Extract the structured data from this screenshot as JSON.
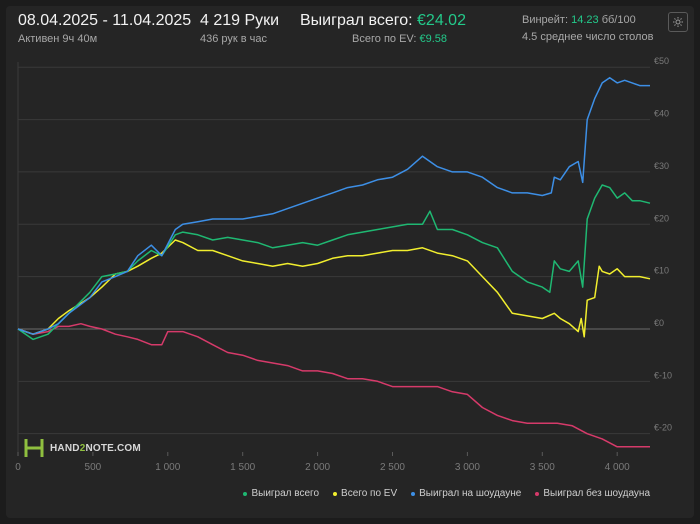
{
  "header": {
    "date_range": "08.04.2025 - 11.04.2025",
    "active": "Активен 9ч 40м",
    "hands": "4 219 Руки",
    "hands_rate": "436 рук в час",
    "won_label": "Выиграл всего:",
    "won_value": "€24.02",
    "ev_label": "Всего по EV:",
    "ev_value": "€9.58",
    "winrate_label": "Винрейт:",
    "winrate_value": "14.23",
    "winrate_unit": "бб/100",
    "tables": "4.5 среднее число столов"
  },
  "logo": {
    "text_left": "HAND",
    "text_mid": "2",
    "text_right": "NOTE.COM",
    "icon": "h2n-logo-icon"
  },
  "settings": {
    "icon": "gear-icon"
  },
  "colors": {
    "green": "#1fb872",
    "yellow": "#f1ee2e",
    "blue": "#3d8fe6",
    "pink": "#d63a6a",
    "accent": "#23c98a"
  },
  "chart_data": {
    "type": "line",
    "x_ticks": [
      0,
      500,
      1000,
      1500,
      2000,
      2500,
      3000,
      3500,
      4000
    ],
    "x_tick_labels": [
      "0",
      "500",
      "1 000",
      "1 500",
      "2 000",
      "2 500",
      "3 000",
      "3 500",
      "4 000"
    ],
    "y_ticks": [
      -20,
      -10,
      0,
      10,
      20,
      30,
      40,
      50
    ],
    "y_tick_labels": [
      "€-20",
      "€-10",
      "€0",
      "€10",
      "€20",
      "€30",
      "€40",
      "€50"
    ],
    "xlim": [
      0,
      4219
    ],
    "ylim": [
      -23.5,
      51
    ],
    "grid": true,
    "legend_position": "bottom-right",
    "series": [
      {
        "name": "Выиграл всего",
        "color": "#1fb872",
        "points": [
          [
            0,
            0
          ],
          [
            100,
            -2
          ],
          [
            200,
            -1
          ],
          [
            270,
            1
          ],
          [
            340,
            3
          ],
          [
            480,
            7
          ],
          [
            560,
            10
          ],
          [
            650,
            10.5
          ],
          [
            730,
            11
          ],
          [
            800,
            13
          ],
          [
            890,
            15
          ],
          [
            960,
            14
          ],
          [
            1050,
            18
          ],
          [
            1100,
            18.5
          ],
          [
            1200,
            18
          ],
          [
            1300,
            17
          ],
          [
            1400,
            17.5
          ],
          [
            1500,
            17
          ],
          [
            1600,
            16.5
          ],
          [
            1700,
            15.5
          ],
          [
            1800,
            16
          ],
          [
            1900,
            16.5
          ],
          [
            2000,
            16
          ],
          [
            2100,
            17
          ],
          [
            2200,
            18
          ],
          [
            2300,
            18.5
          ],
          [
            2400,
            19
          ],
          [
            2500,
            19.5
          ],
          [
            2600,
            20
          ],
          [
            2700,
            20
          ],
          [
            2750,
            22.5
          ],
          [
            2800,
            19
          ],
          [
            2900,
            19
          ],
          [
            3000,
            18
          ],
          [
            3100,
            16.5
          ],
          [
            3200,
            15.5
          ],
          [
            3300,
            11
          ],
          [
            3400,
            9
          ],
          [
            3500,
            8
          ],
          [
            3550,
            7
          ],
          [
            3580,
            13
          ],
          [
            3620,
            11.5
          ],
          [
            3680,
            11
          ],
          [
            3740,
            13
          ],
          [
            3770,
            8
          ],
          [
            3800,
            21
          ],
          [
            3850,
            25
          ],
          [
            3900,
            27.5
          ],
          [
            3950,
            27
          ],
          [
            4000,
            25
          ],
          [
            4050,
            26
          ],
          [
            4100,
            24.5
          ],
          [
            4150,
            24.5
          ],
          [
            4219,
            24.02
          ]
        ]
      },
      {
        "name": "Всего по EV",
        "color": "#f1ee2e",
        "points": [
          [
            0,
            0
          ],
          [
            100,
            -1
          ],
          [
            200,
            0
          ],
          [
            270,
            2
          ],
          [
            340,
            3.5
          ],
          [
            480,
            6
          ],
          [
            560,
            8
          ],
          [
            650,
            10.5
          ],
          [
            730,
            11
          ],
          [
            800,
            12
          ],
          [
            890,
            13.5
          ],
          [
            960,
            14.5
          ],
          [
            1050,
            17
          ],
          [
            1100,
            16.5
          ],
          [
            1200,
            15
          ],
          [
            1300,
            15
          ],
          [
            1400,
            14
          ],
          [
            1500,
            13
          ],
          [
            1600,
            12.5
          ],
          [
            1700,
            12
          ],
          [
            1800,
            12.5
          ],
          [
            1900,
            12
          ],
          [
            2000,
            12.5
          ],
          [
            2100,
            13.5
          ],
          [
            2200,
            14
          ],
          [
            2300,
            14
          ],
          [
            2400,
            14.5
          ],
          [
            2500,
            15
          ],
          [
            2600,
            15
          ],
          [
            2700,
            15.5
          ],
          [
            2800,
            14.5
          ],
          [
            2900,
            14
          ],
          [
            3000,
            13
          ],
          [
            3100,
            10
          ],
          [
            3200,
            7
          ],
          [
            3300,
            3
          ],
          [
            3400,
            2.5
          ],
          [
            3500,
            2
          ],
          [
            3580,
            3
          ],
          [
            3620,
            2
          ],
          [
            3680,
            1
          ],
          [
            3740,
            -0.5
          ],
          [
            3760,
            2
          ],
          [
            3780,
            -1.5
          ],
          [
            3800,
            5.5
          ],
          [
            3850,
            6
          ],
          [
            3880,
            12
          ],
          [
            3900,
            11
          ],
          [
            3950,
            10.5
          ],
          [
            4000,
            11.5
          ],
          [
            4050,
            10
          ],
          [
            4100,
            10
          ],
          [
            4150,
            10
          ],
          [
            4219,
            9.58
          ]
        ]
      },
      {
        "name": "Выиграл на шоудауне",
        "color": "#3d8fe6",
        "points": [
          [
            0,
            0
          ],
          [
            100,
            -1
          ],
          [
            200,
            0
          ],
          [
            270,
            1
          ],
          [
            340,
            3
          ],
          [
            480,
            6
          ],
          [
            560,
            9
          ],
          [
            650,
            10
          ],
          [
            730,
            11
          ],
          [
            800,
            14
          ],
          [
            890,
            16
          ],
          [
            960,
            14
          ],
          [
            1050,
            19
          ],
          [
            1100,
            20
          ],
          [
            1200,
            20.5
          ],
          [
            1300,
            21
          ],
          [
            1400,
            21
          ],
          [
            1500,
            21
          ],
          [
            1600,
            21.5
          ],
          [
            1700,
            22
          ],
          [
            1800,
            23
          ],
          [
            1900,
            24
          ],
          [
            2000,
            25
          ],
          [
            2100,
            26
          ],
          [
            2200,
            27
          ],
          [
            2300,
            27.5
          ],
          [
            2400,
            28.5
          ],
          [
            2500,
            29
          ],
          [
            2600,
            30.5
          ],
          [
            2700,
            33
          ],
          [
            2800,
            31
          ],
          [
            2900,
            30
          ],
          [
            3000,
            30
          ],
          [
            3100,
            29
          ],
          [
            3200,
            27
          ],
          [
            3300,
            26
          ],
          [
            3400,
            26
          ],
          [
            3500,
            25.5
          ],
          [
            3560,
            26
          ],
          [
            3580,
            29
          ],
          [
            3620,
            28.5
          ],
          [
            3680,
            31
          ],
          [
            3740,
            32
          ],
          [
            3770,
            28
          ],
          [
            3800,
            40
          ],
          [
            3850,
            44
          ],
          [
            3900,
            47
          ],
          [
            3950,
            48
          ],
          [
            4000,
            47
          ],
          [
            4050,
            47.5
          ],
          [
            4100,
            47
          ],
          [
            4150,
            46.5
          ],
          [
            4219,
            46.5
          ]
        ]
      },
      {
        "name": "Выиграл без шоудауна",
        "color": "#d63a6a",
        "points": [
          [
            0,
            0
          ],
          [
            100,
            -1
          ],
          [
            200,
            -0.5
          ],
          [
            270,
            0.5
          ],
          [
            340,
            0.5
          ],
          [
            420,
            1
          ],
          [
            480,
            0.5
          ],
          [
            560,
            0
          ],
          [
            650,
            -1
          ],
          [
            730,
            -1.5
          ],
          [
            800,
            -2
          ],
          [
            890,
            -3
          ],
          [
            960,
            -3
          ],
          [
            1000,
            -0.5
          ],
          [
            1100,
            -0.5
          ],
          [
            1200,
            -1.5
          ],
          [
            1300,
            -3
          ],
          [
            1400,
            -4.5
          ],
          [
            1500,
            -5
          ],
          [
            1600,
            -6
          ],
          [
            1700,
            -6.5
          ],
          [
            1800,
            -7
          ],
          [
            1900,
            -8
          ],
          [
            2000,
            -8
          ],
          [
            2100,
            -8.5
          ],
          [
            2200,
            -9.5
          ],
          [
            2300,
            -9.5
          ],
          [
            2400,
            -10
          ],
          [
            2500,
            -11
          ],
          [
            2600,
            -11
          ],
          [
            2700,
            -11
          ],
          [
            2800,
            -11
          ],
          [
            2900,
            -12
          ],
          [
            3000,
            -12.5
          ],
          [
            3100,
            -15
          ],
          [
            3200,
            -16.5
          ],
          [
            3300,
            -17.5
          ],
          [
            3400,
            -18
          ],
          [
            3500,
            -18
          ],
          [
            3600,
            -18
          ],
          [
            3700,
            -18.5
          ],
          [
            3800,
            -20
          ],
          [
            3900,
            -21
          ],
          [
            4000,
            -22.5
          ],
          [
            4100,
            -22.5
          ],
          [
            4150,
            -22.5
          ],
          [
            4219,
            -22.5
          ]
        ]
      }
    ]
  }
}
